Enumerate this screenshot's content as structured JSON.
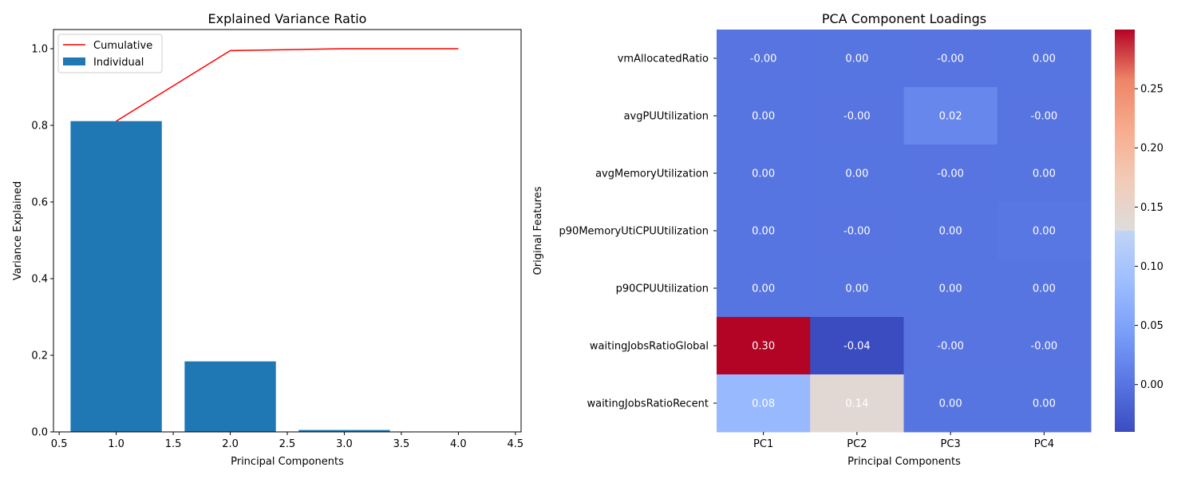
{
  "chart_data": [
    {
      "type": "bar",
      "title": "Explained Variance Ratio",
      "xlabel": "Principal Components",
      "ylabel": "Variance Explained",
      "xlim": [
        0.45,
        4.55
      ],
      "ylim": [
        0,
        1.05
      ],
      "x_ticks": [
        0.5,
        1.0,
        1.5,
        2.0,
        2.5,
        3.0,
        3.5,
        4.0,
        4.5
      ],
      "x_tick_labels": [
        "0.5",
        "1.0",
        "1.5",
        "2.0",
        "2.5",
        "3.0",
        "3.5",
        "4.0",
        "4.5"
      ],
      "y_ticks": [
        0.0,
        0.2,
        0.4,
        0.6,
        0.8,
        1.0
      ],
      "y_tick_labels": [
        "0.0",
        "0.2",
        "0.4",
        "0.6",
        "0.8",
        "1.0"
      ],
      "legend_position": "top-left",
      "grid": false,
      "series": [
        {
          "name": "Individual",
          "kind": "bar",
          "color": "#1f77b4",
          "x": [
            1,
            2,
            3,
            4
          ],
          "values": [
            0.811,
            0.184,
            0.005,
            0.0005
          ]
        },
        {
          "name": "Cumulative",
          "kind": "line",
          "color": "#ff0000",
          "x": [
            1,
            2,
            3,
            4
          ],
          "values": [
            0.811,
            0.995,
            1.0,
            1.0
          ]
        }
      ]
    },
    {
      "type": "heatmap",
      "title": "PCA Component Loadings",
      "xlabel": "Principal Components",
      "ylabel": "Original Features",
      "columns": [
        "PC1",
        "PC2",
        "PC3",
        "PC4"
      ],
      "rows": [
        "vmAllocatedRatio",
        "avgPUUtilization",
        "avgMemoryUtilization",
        "p90MemoryUtiCPUUtilization",
        "p90CPUUtilization",
        "waitingJobsRatioGlobal",
        "waitingJobsRatioRecent"
      ],
      "values": [
        [
          -0.0001,
          0.0001,
          -0.0001,
          0.0001
        ],
        [
          0.0001,
          -0.0001,
          0.02,
          -0.0001
        ],
        [
          0.0001,
          0.0001,
          -0.0001,
          0.0001
        ],
        [
          0.0001,
          -0.0001,
          0.0001,
          0.003
        ],
        [
          0.0001,
          0.0001,
          0.0001,
          0.0001
        ],
        [
          0.3,
          -0.04,
          -0.0001,
          -0.0001
        ],
        [
          0.08,
          0.14,
          0.0001,
          0.0001
        ]
      ],
      "cell_labels": [
        [
          "-0.00",
          "0.00",
          "-0.00",
          "0.00"
        ],
        [
          "0.00",
          "-0.00",
          "0.02",
          "-0.00"
        ],
        [
          "0.00",
          "0.00",
          "-0.00",
          "0.00"
        ],
        [
          "0.00",
          "-0.00",
          "0.00",
          "0.00"
        ],
        [
          "0.00",
          "0.00",
          "0.00",
          "0.00"
        ],
        [
          "0.30",
          "-0.04",
          "-0.00",
          "-0.00"
        ],
        [
          "0.08",
          "0.14",
          "0.00",
          "0.00"
        ]
      ],
      "colormap": "coolwarm",
      "vmin": -0.04,
      "vmax": 0.3,
      "colorbar_ticks": [
        0.0,
        0.05,
        0.1,
        0.15,
        0.2,
        0.25
      ],
      "colorbar_tick_labels": [
        "0.00",
        "0.05",
        "0.10",
        "0.15",
        "0.20",
        "0.25"
      ]
    }
  ]
}
